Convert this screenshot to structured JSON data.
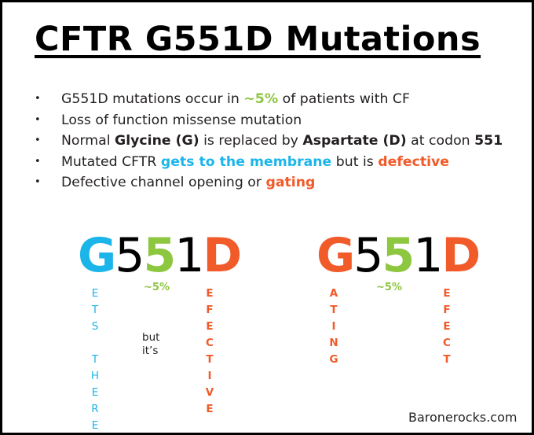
{
  "title": "CFTR G551D Mutations",
  "bullets": [
    {
      "parts": [
        {
          "t": "G551D mutations occur in ",
          "s": ""
        },
        {
          "t": "~5%",
          "s": "green"
        },
        {
          "t": " of patients with CF",
          "s": ""
        }
      ]
    },
    {
      "parts": [
        {
          "t": "Loss of function missense mutation",
          "s": ""
        }
      ]
    },
    {
      "parts": [
        {
          "t": "Normal ",
          "s": ""
        },
        {
          "t": "Glycine (G)",
          "s": "b"
        },
        {
          "t": " is replaced by ",
          "s": ""
        },
        {
          "t": "Aspartate (D)",
          "s": "b"
        },
        {
          "t": " at codon ",
          "s": ""
        },
        {
          "t": "551",
          "s": "b"
        }
      ]
    },
    {
      "parts": [
        {
          "t": "Mutated CFTR ",
          "s": ""
        },
        {
          "t": "gets to the membrane",
          "s": "blue"
        },
        {
          "t": " but is ",
          "s": ""
        },
        {
          "t": "defective",
          "s": "orange"
        }
      ]
    },
    {
      "parts": [
        {
          "t": "Defective channel opening or ",
          "s": ""
        },
        {
          "t": "gating",
          "s": "orange"
        }
      ]
    }
  ],
  "left_word": {
    "g": "G",
    "five1": "5",
    "five2": "5",
    "one": "1",
    "d": "D"
  },
  "right_word": {
    "g": "G",
    "five1": "5",
    "five2": "5",
    "one": "1",
    "d": "D"
  },
  "left_labels": {
    "g_letters": [
      "E",
      "T",
      "S",
      "",
      "T",
      "H",
      "E",
      "R",
      "E"
    ],
    "five": "~5%",
    "middle": [
      "but",
      "it’s"
    ],
    "d_letters": [
      "E",
      "F",
      "E",
      "C",
      "T",
      "I",
      "V",
      "E"
    ]
  },
  "right_labels": {
    "g_letters": [
      "A",
      "T",
      "I",
      "N",
      "G"
    ],
    "five": "~5%",
    "d_letters": [
      "E",
      "F",
      "E",
      "C",
      "T"
    ]
  },
  "credit": "Baronerocks.com",
  "colors": {
    "blue": "#1cb5ea",
    "green": "#8dc63f",
    "orange": "#f15a29",
    "text": "#231f20"
  }
}
